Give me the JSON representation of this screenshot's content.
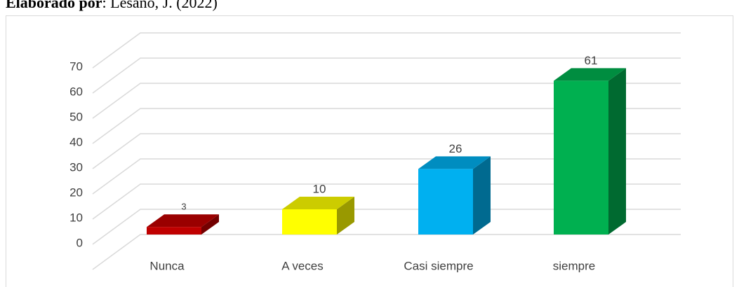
{
  "caption": {
    "bold": "Elaborado por",
    "rest": ": Lesano, J. (2022)"
  },
  "chart_data": {
    "type": "bar3d",
    "categories": [
      "Nunca",
      "A veces",
      "Casi siempre",
      "siempre"
    ],
    "values": [
      3,
      10,
      26,
      61
    ],
    "colors": [
      "#c00000",
      "#ffff00",
      "#00b0f0",
      "#00b050"
    ],
    "ylim": [
      0,
      80
    ],
    "yticks": [
      0,
      10,
      20,
      30,
      40,
      50,
      60,
      70
    ],
    "grid": true
  }
}
